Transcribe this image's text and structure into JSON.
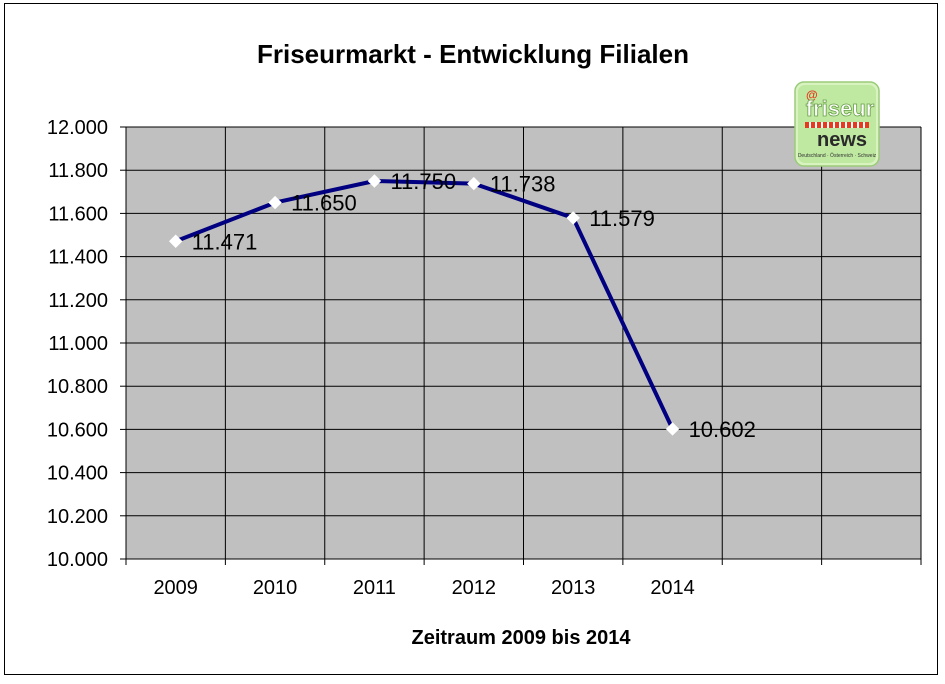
{
  "chart_data": {
    "type": "line",
    "title": "Friseurmarkt - Entwicklung Filialen",
    "xlabel": "Zeitraum 2009 bis 2014",
    "ylabel": "",
    "categories": [
      "2009",
      "2010",
      "2011",
      "2012",
      "2013",
      "2014"
    ],
    "values": [
      11471,
      11650,
      11750,
      11738,
      11579,
      10602
    ],
    "value_labels": [
      "11.471",
      "11.650",
      "11.750",
      "11.738",
      "11.579",
      "10.602"
    ],
    "yticks": [
      10000,
      10200,
      10400,
      10600,
      10800,
      11000,
      11200,
      11400,
      11600,
      11800,
      12000
    ],
    "ytick_labels": [
      "10.000",
      "10.200",
      "10.400",
      "10.600",
      "10.800",
      "11.000",
      "11.200",
      "11.400",
      "11.600",
      "11.800",
      "12.000"
    ],
    "ylim": [
      10000,
      12000
    ],
    "category_slots": 8,
    "grid": true,
    "legend": "none",
    "colors": {
      "line": "#000080",
      "marker": "#ffffff",
      "plot_background": "#c0c0c0",
      "grid": "#000000"
    }
  },
  "logo": {
    "symbol": "@",
    "word1": "friseur",
    "word2": "news",
    "tagline": "Deutschland · Österreich · Schweiz"
  }
}
